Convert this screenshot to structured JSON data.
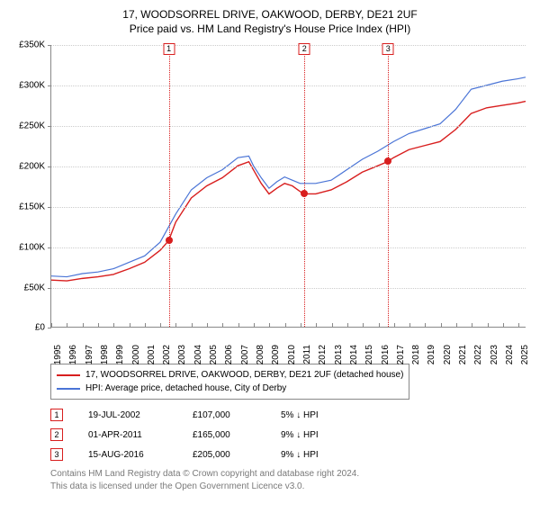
{
  "title_line1": "17, WOODSORREL DRIVE, OAKWOOD, DERBY, DE21 2UF",
  "title_line2": "Price paid vs. HM Land Registry's House Price Index (HPI)",
  "chart": {
    "type": "line",
    "background_color": "#ffffff",
    "grid_color": "#cccccc",
    "axis_color": "#888888",
    "label_fontsize": 10,
    "title_fontsize": 12,
    "xlim": [
      1995,
      2025.5
    ],
    "ylim": [
      0,
      350000
    ],
    "ytick_step": 50000,
    "y_ticks": [
      {
        "v": 0,
        "label": "£0"
      },
      {
        "v": 50000,
        "label": "£50K"
      },
      {
        "v": 100000,
        "label": "£100K"
      },
      {
        "v": 150000,
        "label": "£150K"
      },
      {
        "v": 200000,
        "label": "£200K"
      },
      {
        "v": 250000,
        "label": "£250K"
      },
      {
        "v": 300000,
        "label": "£300K"
      },
      {
        "v": 350000,
        "label": "£350K"
      }
    ],
    "x_ticks": [
      1995,
      1996,
      1997,
      1998,
      1999,
      2000,
      2001,
      2002,
      2003,
      2004,
      2005,
      2006,
      2007,
      2008,
      2009,
      2010,
      2011,
      2012,
      2013,
      2014,
      2015,
      2016,
      2017,
      2018,
      2019,
      2020,
      2021,
      2022,
      2023,
      2024,
      2025
    ],
    "series": [
      {
        "name": "17, WOODSORREL DRIVE, OAKWOOD, DERBY, DE21 2UF (detached house)",
        "color": "#d81e1e",
        "line_width": 1.4,
        "data": [
          [
            1995,
            58000
          ],
          [
            1996,
            57000
          ],
          [
            1997,
            60000
          ],
          [
            1998,
            62000
          ],
          [
            1999,
            65000
          ],
          [
            2000,
            72000
          ],
          [
            2001,
            80000
          ],
          [
            2002,
            95000
          ],
          [
            2002.55,
            107000
          ],
          [
            2003,
            130000
          ],
          [
            2004,
            160000
          ],
          [
            2005,
            175000
          ],
          [
            2006,
            185000
          ],
          [
            2007,
            200000
          ],
          [
            2007.7,
            205000
          ],
          [
            2008,
            195000
          ],
          [
            2008.5,
            178000
          ],
          [
            2009,
            165000
          ],
          [
            2009.5,
            172000
          ],
          [
            2010,
            178000
          ],
          [
            2010.5,
            175000
          ],
          [
            2011,
            168000
          ],
          [
            2011.25,
            165000
          ],
          [
            2012,
            165000
          ],
          [
            2013,
            170000
          ],
          [
            2014,
            180000
          ],
          [
            2015,
            192000
          ],
          [
            2016,
            200000
          ],
          [
            2016.62,
            205000
          ],
          [
            2017,
            210000
          ],
          [
            2018,
            220000
          ],
          [
            2019,
            225000
          ],
          [
            2020,
            230000
          ],
          [
            2021,
            245000
          ],
          [
            2022,
            265000
          ],
          [
            2023,
            272000
          ],
          [
            2024,
            275000
          ],
          [
            2025,
            278000
          ],
          [
            2025.5,
            280000
          ]
        ]
      },
      {
        "name": "HPI: Average price, detached house, City of Derby",
        "color": "#4a74d6",
        "line_width": 1.2,
        "data": [
          [
            1995,
            63000
          ],
          [
            1996,
            62000
          ],
          [
            1997,
            66000
          ],
          [
            1998,
            68000
          ],
          [
            1999,
            72000
          ],
          [
            2000,
            80000
          ],
          [
            2001,
            88000
          ],
          [
            2002,
            105000
          ],
          [
            2003,
            140000
          ],
          [
            2004,
            170000
          ],
          [
            2005,
            185000
          ],
          [
            2006,
            195000
          ],
          [
            2007,
            210000
          ],
          [
            2007.7,
            212000
          ],
          [
            2008,
            200000
          ],
          [
            2008.5,
            185000
          ],
          [
            2009,
            172000
          ],
          [
            2009.5,
            180000
          ],
          [
            2010,
            186000
          ],
          [
            2010.5,
            182000
          ],
          [
            2011,
            178000
          ],
          [
            2012,
            178000
          ],
          [
            2013,
            182000
          ],
          [
            2014,
            195000
          ],
          [
            2015,
            208000
          ],
          [
            2016,
            218000
          ],
          [
            2017,
            230000
          ],
          [
            2018,
            240000
          ],
          [
            2019,
            246000
          ],
          [
            2020,
            252000
          ],
          [
            2021,
            270000
          ],
          [
            2022,
            295000
          ],
          [
            2023,
            300000
          ],
          [
            2024,
            305000
          ],
          [
            2025,
            308000
          ],
          [
            2025.5,
            310000
          ]
        ]
      }
    ],
    "events": [
      {
        "n": "1",
        "x": 2002.55,
        "price": 107000,
        "color": "#d81e1e"
      },
      {
        "n": "2",
        "x": 2011.25,
        "price": 165000,
        "color": "#d81e1e"
      },
      {
        "n": "3",
        "x": 2016.62,
        "price": 205000,
        "color": "#d81e1e"
      }
    ]
  },
  "legend": {
    "border_color": "#888888",
    "items": [
      {
        "color": "#d81e1e",
        "label": "17, WOODSORREL DRIVE, OAKWOOD, DERBY, DE21 2UF (detached house)"
      },
      {
        "color": "#4a74d6",
        "label": "HPI: Average price, detached house, City of Derby"
      }
    ]
  },
  "events_table": [
    {
      "n": "1",
      "color": "#d81e1e",
      "date": "19-JUL-2002",
      "price": "£107,000",
      "delta": "5% ↓ HPI"
    },
    {
      "n": "2",
      "color": "#d81e1e",
      "date": "01-APR-2011",
      "price": "£165,000",
      "delta": "9% ↓ HPI"
    },
    {
      "n": "3",
      "color": "#d81e1e",
      "date": "15-AUG-2016",
      "price": "£205,000",
      "delta": "9% ↓ HPI"
    }
  ],
  "footer": {
    "line1": "Contains HM Land Registry data © Crown copyright and database right 2024.",
    "line2": "This data is licensed under the Open Government Licence v3.0."
  }
}
